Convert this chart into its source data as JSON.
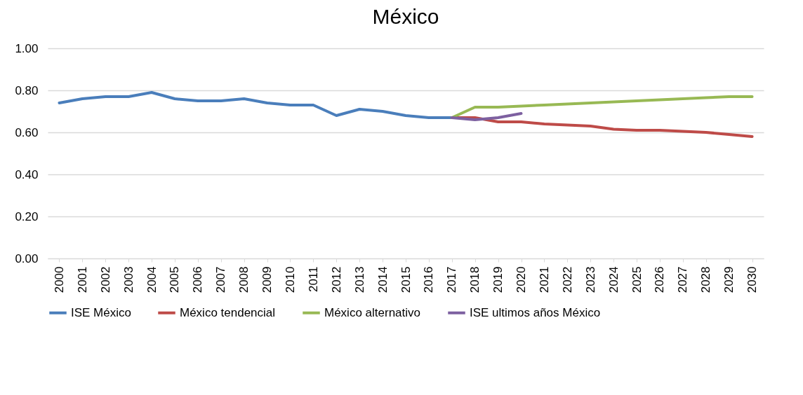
{
  "chart_data": {
    "type": "line",
    "title": "México",
    "categories": [
      "2000",
      "2001",
      "2002",
      "2003",
      "2004",
      "2005",
      "2006",
      "2007",
      "2008",
      "2009",
      "2010",
      "2011",
      "2012",
      "2013",
      "2014",
      "2015",
      "2016",
      "2017",
      "2018",
      "2019",
      "2020",
      "2021",
      "2022",
      "2023",
      "2024",
      "2025",
      "2026",
      "2027",
      "2028",
      "2029",
      "2030"
    ],
    "series": [
      {
        "name": "ISE México",
        "color": "#4a7ebb",
        "values": [
          0.74,
          0.76,
          0.77,
          0.77,
          0.79,
          0.76,
          0.75,
          0.75,
          0.76,
          0.74,
          0.73,
          0.73,
          0.68,
          0.71,
          0.7,
          0.68,
          0.67,
          0.67,
          null,
          null,
          null,
          null,
          null,
          null,
          null,
          null,
          null,
          null,
          null,
          null,
          null
        ]
      },
      {
        "name": "México tendencial",
        "color": "#be4b48",
        "values": [
          null,
          null,
          null,
          null,
          null,
          null,
          null,
          null,
          null,
          null,
          null,
          null,
          null,
          null,
          null,
          null,
          null,
          0.67,
          0.67,
          0.65,
          0.65,
          0.64,
          0.635,
          0.63,
          0.615,
          0.61,
          0.61,
          0.605,
          0.6,
          0.59,
          0.58
        ]
      },
      {
        "name": "México alternativo",
        "color": "#98b954",
        "values": [
          null,
          null,
          null,
          null,
          null,
          null,
          null,
          null,
          null,
          null,
          null,
          null,
          null,
          null,
          null,
          null,
          null,
          0.67,
          0.72,
          0.72,
          0.725,
          0.73,
          0.735,
          0.74,
          0.745,
          0.75,
          0.755,
          0.76,
          0.765,
          0.77,
          0.77
        ]
      },
      {
        "name": "ISE ultimos años México",
        "color": "#7d60a0",
        "values": [
          null,
          null,
          null,
          null,
          null,
          null,
          null,
          null,
          null,
          null,
          null,
          null,
          null,
          null,
          null,
          null,
          null,
          0.67,
          0.66,
          0.67,
          0.69,
          null,
          null,
          null,
          null,
          null,
          null,
          null,
          null,
          null,
          null
        ]
      }
    ],
    "ylim": [
      0,
      1
    ],
    "yticks": [
      {
        "value": 0,
        "label": "0.00"
      },
      {
        "value": 0.2,
        "label": "0.20"
      },
      {
        "value": 0.4,
        "label": "0.40"
      },
      {
        "value": 0.6,
        "label": "0.60"
      },
      {
        "value": 0.8,
        "label": "0.80"
      },
      {
        "value": 1,
        "label": "1.00"
      }
    ],
    "grid": "y",
    "legend": "bottom",
    "marker": "none",
    "line_style": "solid"
  }
}
